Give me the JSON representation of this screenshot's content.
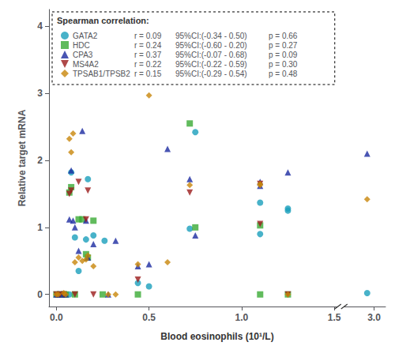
{
  "chart_data": {
    "type": "scatter",
    "xlabel": "Blood eosinophils (10¹/L)",
    "ylabel": "Relative target mRNA",
    "legend_title": "Spearman correlation:",
    "legend": "upper left",
    "grid": false,
    "series": [
      {
        "name": "GATA2",
        "color": "#1a9fbc",
        "marker": "circle",
        "annotations": [
          "r = 0.09",
          "95%CI:(-0.34 - 0.50)",
          "p = 0.66"
        ],
        "x": [
          0.01,
          0.03,
          0.05,
          0.07,
          0.08,
          0.1,
          0.12,
          0.16,
          0.17,
          0.2,
          0.26,
          0.44,
          0.5,
          0.72,
          0.75,
          1.1,
          1.1,
          1.25,
          1.25,
          2.97
        ],
        "y": [
          0.0,
          0.0,
          0.0,
          0.0,
          1.82,
          0.85,
          0.35,
          0.82,
          1.72,
          0.88,
          0.8,
          0.17,
          0.12,
          0.98,
          2.42,
          0.9,
          1.37,
          1.28,
          1.25,
          0.02
        ]
      },
      {
        "name": "HDC",
        "color": "#3aaa35",
        "marker": "square",
        "annotations": [
          "r = 0.24",
          "95%CI:(-0.60 - 0.20)",
          "p = 0.27"
        ],
        "x": [
          0.0,
          0.02,
          0.04,
          0.05,
          0.07,
          0.08,
          0.1,
          0.12,
          0.14,
          0.16,
          0.17,
          0.2,
          0.25,
          0.44,
          0.72,
          0.75,
          1.1,
          1.1,
          1.25
        ],
        "y": [
          0.0,
          0.0,
          0.0,
          0.0,
          1.52,
          1.6,
          0.0,
          1.12,
          1.12,
          0.6,
          0.55,
          1.1,
          0.0,
          0.0,
          2.55,
          1.0,
          0.0,
          1.03,
          0.0
        ]
      },
      {
        "name": "CPA3",
        "color": "#1c2ba0",
        "marker": "triangle-up",
        "annotations": [
          "r = 0.37",
          "95%CI:(-0.07 - 0.68)",
          "p = 0.09"
        ],
        "x": [
          0.0,
          0.01,
          0.03,
          0.05,
          0.07,
          0.08,
          0.09,
          0.1,
          0.12,
          0.14,
          0.16,
          0.17,
          0.2,
          0.28,
          0.32,
          0.44,
          0.5,
          0.6,
          0.72,
          0.75,
          1.1,
          1.1,
          1.25,
          2.97
        ],
        "y": [
          0.0,
          0.0,
          0.0,
          0.0,
          1.12,
          1.85,
          1.1,
          1.0,
          0.65,
          2.44,
          1.1,
          0.55,
          0.75,
          0.0,
          0.8,
          0.42,
          0.45,
          2.17,
          1.72,
          0.88,
          1.68,
          1.62,
          1.82,
          2.1
        ]
      },
      {
        "name": "MS4A2",
        "color": "#9b1c1c",
        "marker": "triangle-down",
        "annotations": [
          "r = 0.22",
          "95%CI:(-0.22 - 0.59)",
          "p = 0.30"
        ],
        "x": [
          0.0,
          0.02,
          0.04,
          0.07,
          0.08,
          0.1,
          0.12,
          0.16,
          0.17,
          0.2,
          0.44,
          0.72,
          1.1,
          1.1,
          1.25
        ],
        "y": [
          0.0,
          0.0,
          0.0,
          1.5,
          1.55,
          0.0,
          1.68,
          1.12,
          1.55,
          0.0,
          0.22,
          1.52,
          1.05,
          1.65,
          0.0
        ]
      },
      {
        "name": "TPSAB1/TPSB2",
        "color": "#c8860a",
        "marker": "diamond",
        "annotations": [
          "r = 0.15",
          "95%CI:(-0.29 - 0.54)",
          "p = 0.48"
        ],
        "x": [
          0.0,
          0.01,
          0.04,
          0.05,
          0.07,
          0.08,
          0.09,
          0.1,
          0.12,
          0.14,
          0.16,
          0.17,
          0.2,
          0.28,
          0.32,
          0.44,
          0.5,
          0.6,
          0.72,
          1.1,
          1.1,
          1.25,
          2.97
        ],
        "y": [
          0.0,
          0.0,
          0.02,
          0.0,
          2.32,
          2.12,
          2.4,
          0.48,
          0.55,
          0.5,
          0.52,
          0.58,
          0.42,
          0.0,
          0.0,
          0.45,
          2.97,
          0.48,
          1.63,
          1.63,
          1.65,
          0.0,
          1.42
        ]
      }
    ],
    "xlim": [
      -0.04,
      1.52
    ],
    "xticks": [
      {
        "value": 0.0,
        "label": "0.0"
      },
      {
        "value": 0.5,
        "label": "0.5"
      },
      {
        "value": 1.0,
        "label": "1.0"
      },
      {
        "value": 1.5,
        "label": "1.5"
      }
    ],
    "x2lim": [
      2.87,
      3.05
    ],
    "x2ticks": [
      {
        "value": 3.0,
        "label": "3.0"
      }
    ],
    "ylim": [
      -0.18,
      4.25
    ],
    "yticks": [
      0,
      1,
      2,
      3,
      4
    ]
  }
}
